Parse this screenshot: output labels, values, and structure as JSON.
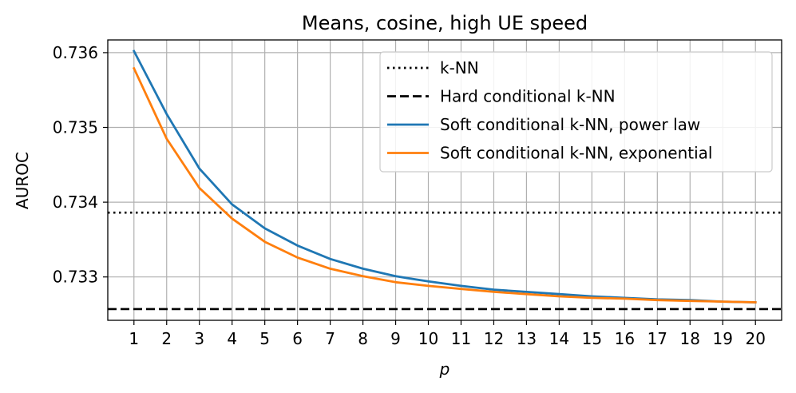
{
  "chart_data": {
    "type": "line",
    "title": "Means, cosine, high UE speed",
    "xlabel": "p",
    "ylabel": "AUROC",
    "xlim": [
      0.2,
      20.8
    ],
    "ylim": [
      0.73242,
      0.73617
    ],
    "x_ticks": [
      1,
      2,
      3,
      4,
      5,
      6,
      7,
      8,
      9,
      10,
      11,
      12,
      13,
      14,
      15,
      16,
      17,
      18,
      19,
      20
    ],
    "y_ticks": [
      0.733,
      0.734,
      0.735,
      0.736
    ],
    "y_tick_labels": [
      "0.733",
      "0.734",
      "0.735",
      "0.736"
    ],
    "grid": true,
    "legend_position": "top-right",
    "x": [
      1,
      2,
      3,
      4,
      5,
      6,
      7,
      8,
      9,
      10,
      11,
      12,
      13,
      14,
      15,
      16,
      17,
      18,
      19,
      20
    ],
    "hlines": [
      {
        "name": "k-NN",
        "value": 0.73386,
        "style": "dotted",
        "color": "#000000"
      },
      {
        "name": "Hard conditional k-NN",
        "value": 0.73257,
        "style": "dashed",
        "color": "#000000"
      }
    ],
    "series": [
      {
        "name": "Soft conditional k-NN, power law",
        "color": "#1f77b4",
        "values": [
          0.73602,
          0.73518,
          0.73445,
          0.73397,
          0.73365,
          0.73342,
          0.73324,
          0.73311,
          0.73301,
          0.73294,
          0.73288,
          0.73283,
          0.7328,
          0.73277,
          0.73274,
          0.73272,
          0.7327,
          0.73269,
          0.73267,
          0.73266
        ]
      },
      {
        "name": "Soft conditional k-NN, exponential",
        "color": "#ff7f0e",
        "values": [
          0.73579,
          0.73485,
          0.73419,
          0.73378,
          0.73347,
          0.73326,
          0.73311,
          0.73301,
          0.73293,
          0.73288,
          0.73284,
          0.7328,
          0.73277,
          0.73274,
          0.73272,
          0.73271,
          0.73269,
          0.73268,
          0.73267,
          0.73266
        ]
      }
    ]
  }
}
